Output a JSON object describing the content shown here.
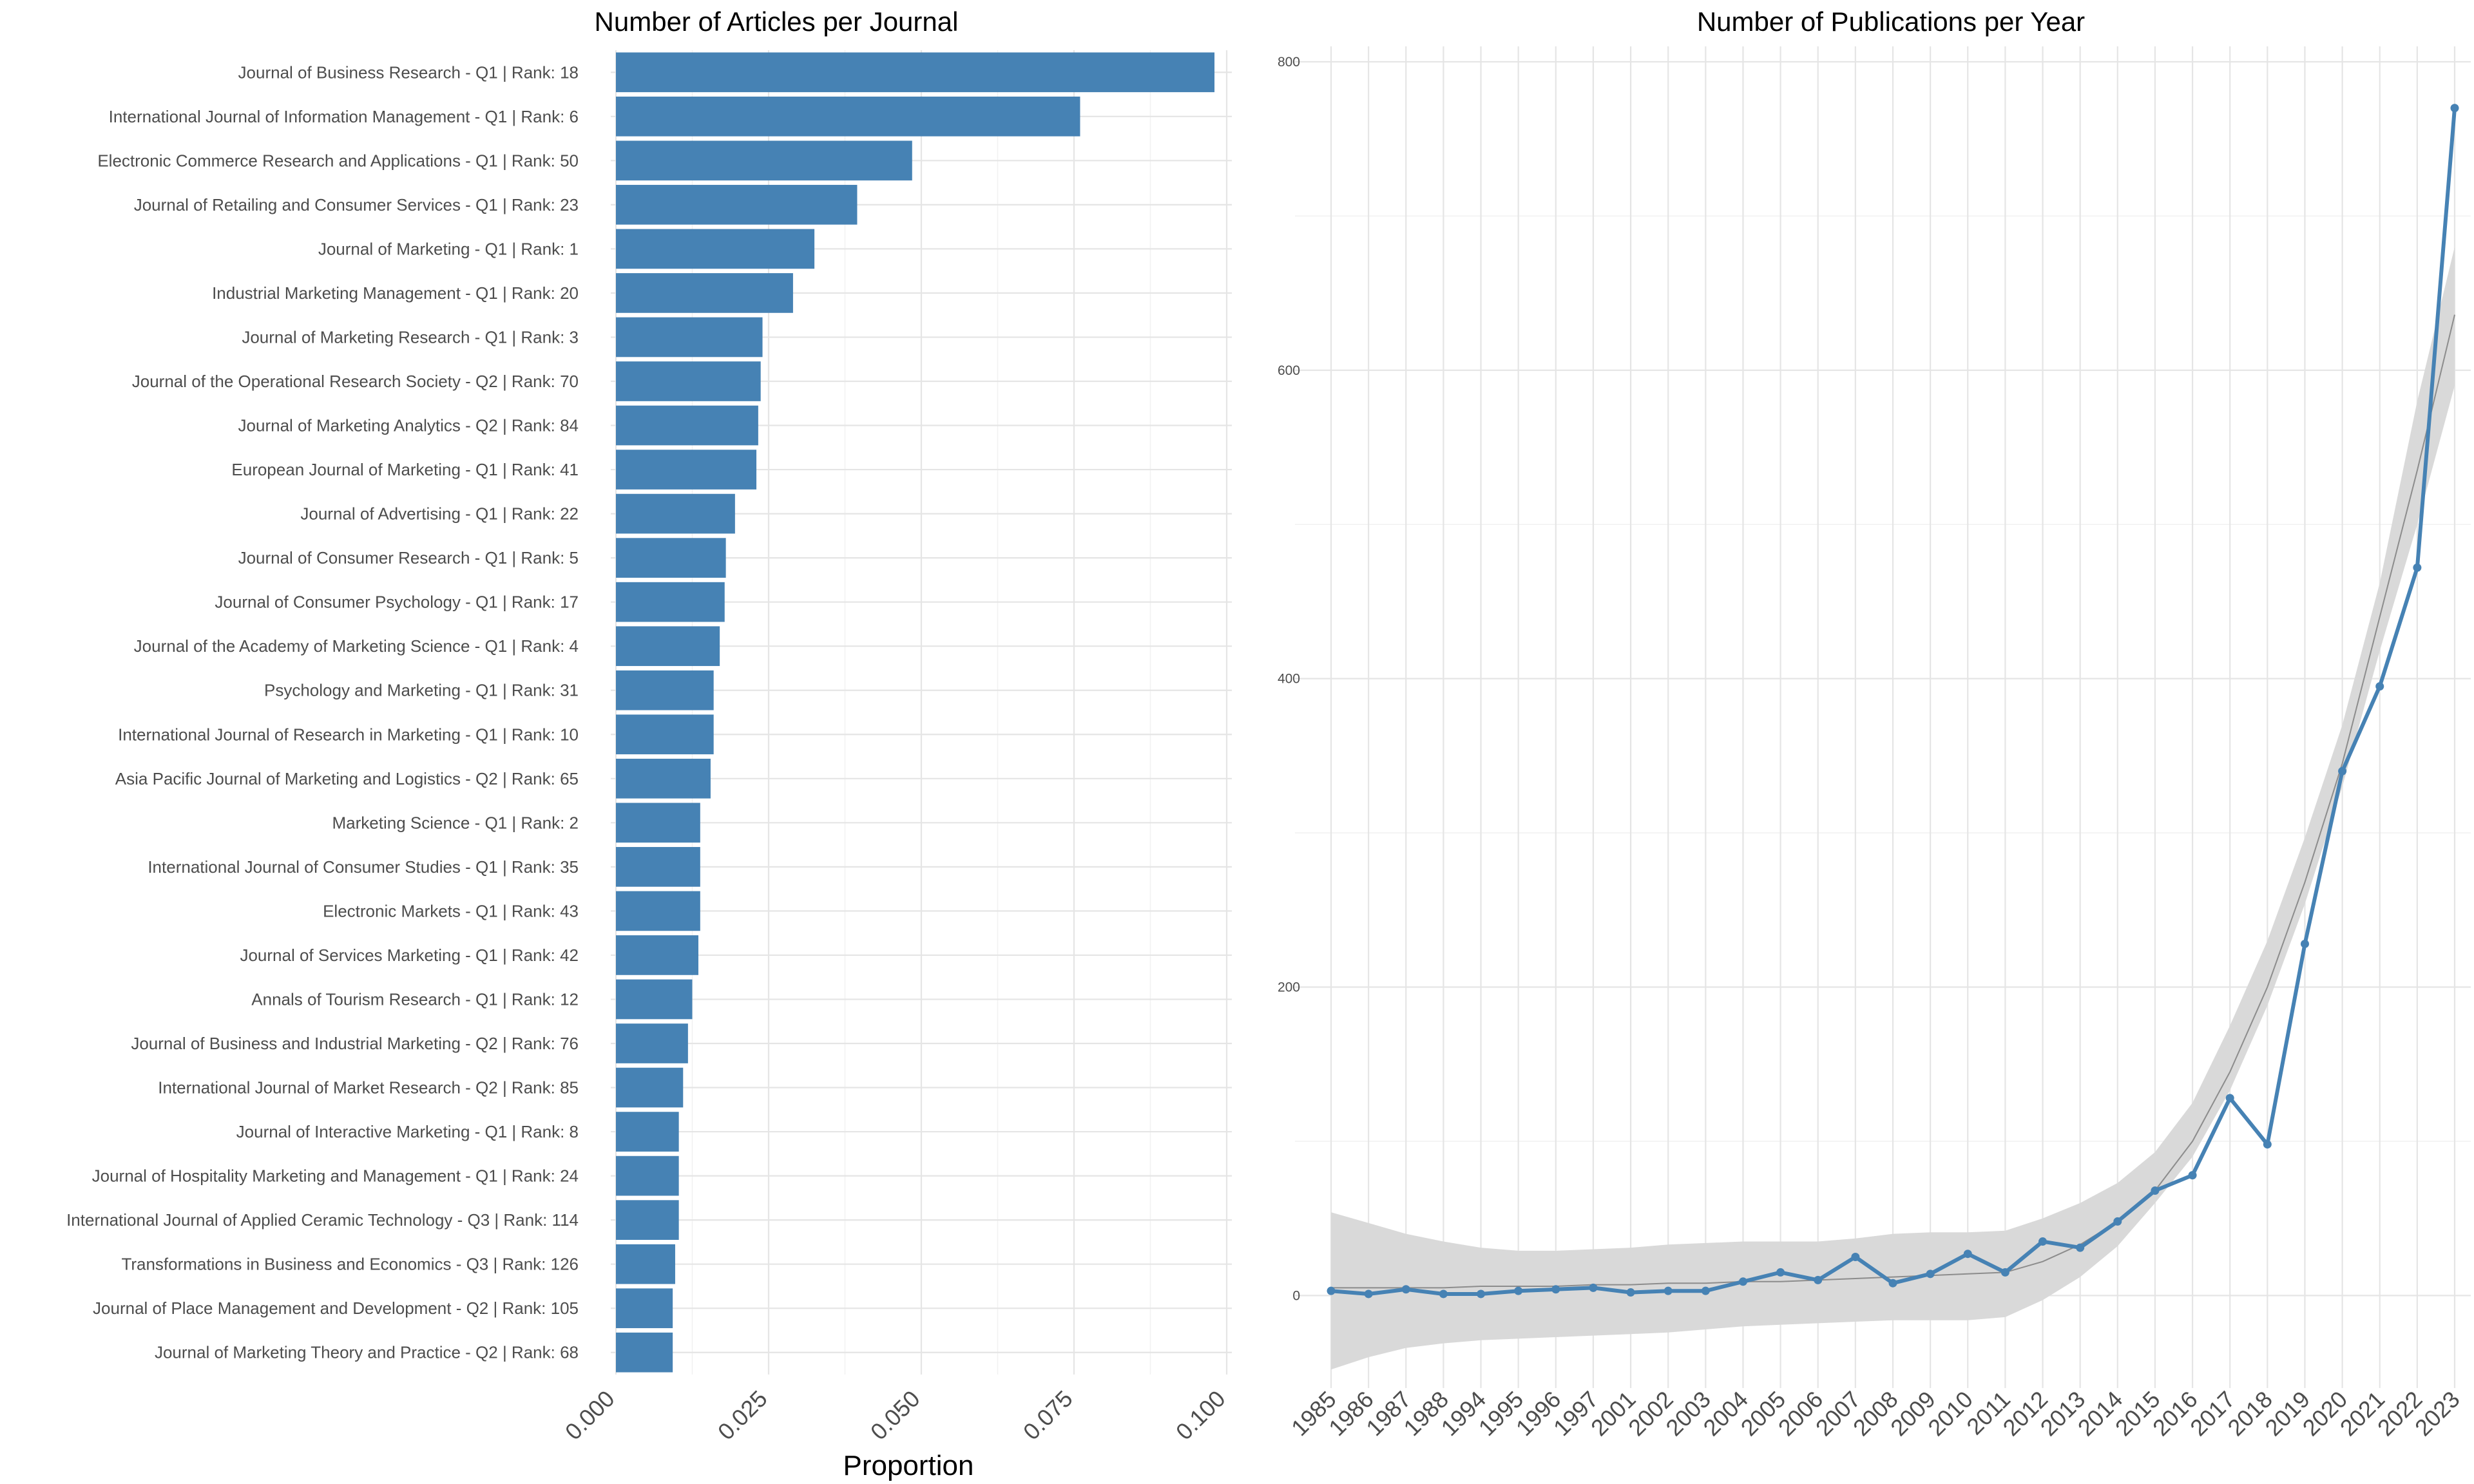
{
  "colors": {
    "bar": "#4682b4",
    "line": "#4682b4",
    "trend": "#8c8c8c",
    "ribbon": "#d9d9d9"
  },
  "chart_data": [
    {
      "type": "bar",
      "orientation": "horizontal",
      "title": "Number of Articles per Journal",
      "xlabel": "Proportion",
      "ylabel": "",
      "xlim": [
        0,
        0.1
      ],
      "x_ticks": [
        "0.000",
        "0.025",
        "0.050",
        "0.075",
        "0.100"
      ],
      "grid": true,
      "categories": [
        "Journal of Business Research - Q1 | Rank: 18",
        "International Journal of Information Management - Q1 | Rank: 6",
        "Electronic Commerce Research and Applications - Q1 | Rank: 50",
        "Journal of Retailing and Consumer Services - Q1 | Rank: 23",
        "Journal of Marketing - Q1 | Rank: 1",
        "Industrial Marketing Management - Q1 | Rank: 20",
        "Journal of Marketing Research - Q1 | Rank: 3",
        "Journal of the Operational Research Society - Q2 | Rank: 70",
        "Journal of Marketing Analytics - Q2 | Rank: 84",
        "European Journal of Marketing - Q1 | Rank: 41",
        "Journal of Advertising - Q1 | Rank: 22",
        "Journal of Consumer Research - Q1 | Rank: 5",
        "Journal of Consumer Psychology - Q1 | Rank: 17",
        "Journal of the Academy of Marketing Science - Q1 | Rank: 4",
        "Psychology and Marketing - Q1 | Rank: 31",
        "International Journal of Research in Marketing - Q1 | Rank: 10",
        "Asia Pacific Journal of Marketing and Logistics - Q2 | Rank: 65",
        "Marketing Science - Q1 | Rank: 2",
        "International Journal of Consumer Studies - Q1 | Rank: 35",
        "Electronic Markets - Q1 | Rank: 43",
        "Journal of Services Marketing - Q1 | Rank: 42",
        "Annals of Tourism Research - Q1 | Rank: 12",
        "Journal of Business and Industrial Marketing - Q2 | Rank: 76",
        "International Journal of Market Research - Q2 | Rank: 85",
        "Journal of Interactive Marketing - Q1 | Rank: 8",
        "Journal of Hospitality Marketing and Management - Q1 | Rank: 24",
        "International Journal of Applied Ceramic Technology - Q3 | Rank: 114",
        "Transformations in Business and Economics - Q3 | Rank: 126",
        "Journal of Place Management and Development - Q2 | Rank: 105",
        "Journal of Marketing Theory and Practice - Q2 | Rank: 68"
      ],
      "values": [
        0.098,
        0.076,
        0.0485,
        0.0395,
        0.0325,
        0.029,
        0.024,
        0.0237,
        0.0233,
        0.023,
        0.0195,
        0.018,
        0.0178,
        0.017,
        0.016,
        0.016,
        0.0155,
        0.0138,
        0.0138,
        0.0138,
        0.0135,
        0.0125,
        0.0118,
        0.011,
        0.0103,
        0.0103,
        0.0103,
        0.0097,
        0.0093,
        0.0093
      ]
    },
    {
      "type": "line",
      "title": "Number of Publications per Year",
      "xlabel": "",
      "ylabel": "",
      "ylim": [
        -60,
        810
      ],
      "y_ticks": [
        0,
        200,
        400,
        600,
        800
      ],
      "grid": true,
      "categories": [
        "1985",
        "1986",
        "1987",
        "1988",
        "1994",
        "1995",
        "1996",
        "1997",
        "2001",
        "2002",
        "2003",
        "2004",
        "2005",
        "2006",
        "2007",
        "2008",
        "2009",
        "2010",
        "2011",
        "2012",
        "2013",
        "2014",
        "2015",
        "2016",
        "2017",
        "2018",
        "2019",
        "2020",
        "2021",
        "2022",
        "2023"
      ],
      "series": [
        {
          "values": [
            3,
            1,
            4,
            1,
            1,
            3,
            4,
            5,
            2,
            3,
            3,
            9,
            15,
            10,
            25,
            8,
            14,
            27,
            15,
            35,
            31,
            48,
            68,
            78,
            128,
            98,
            228,
            340,
            395,
            472,
            770
          ]
        }
      ],
      "trend": {
        "fit": [
          5,
          5,
          5,
          5,
          6,
          6,
          6,
          7,
          7,
          8,
          8,
          9,
          9,
          10,
          11,
          12,
          13,
          14,
          15,
          22,
          33,
          48,
          68,
          100,
          145,
          200,
          268,
          345,
          440,
          535,
          636
        ],
        "lower": [
          -48,
          -40,
          -34,
          -31,
          -29,
          -28,
          -27,
          -26,
          -25,
          -24,
          -22,
          -20,
          -19,
          -18,
          -17,
          -16,
          -16,
          -16,
          -14,
          -3,
          12,
          32,
          60,
          90,
          133,
          188,
          254,
          330,
          418,
          500,
          590
        ],
        "upper": [
          54,
          47,
          40,
          35,
          31,
          29,
          29,
          30,
          31,
          33,
          34,
          35,
          35,
          35,
          37,
          40,
          41,
          41,
          42,
          50,
          60,
          73,
          93,
          125,
          175,
          230,
          297,
          370,
          462,
          580,
          680
        ]
      }
    }
  ]
}
